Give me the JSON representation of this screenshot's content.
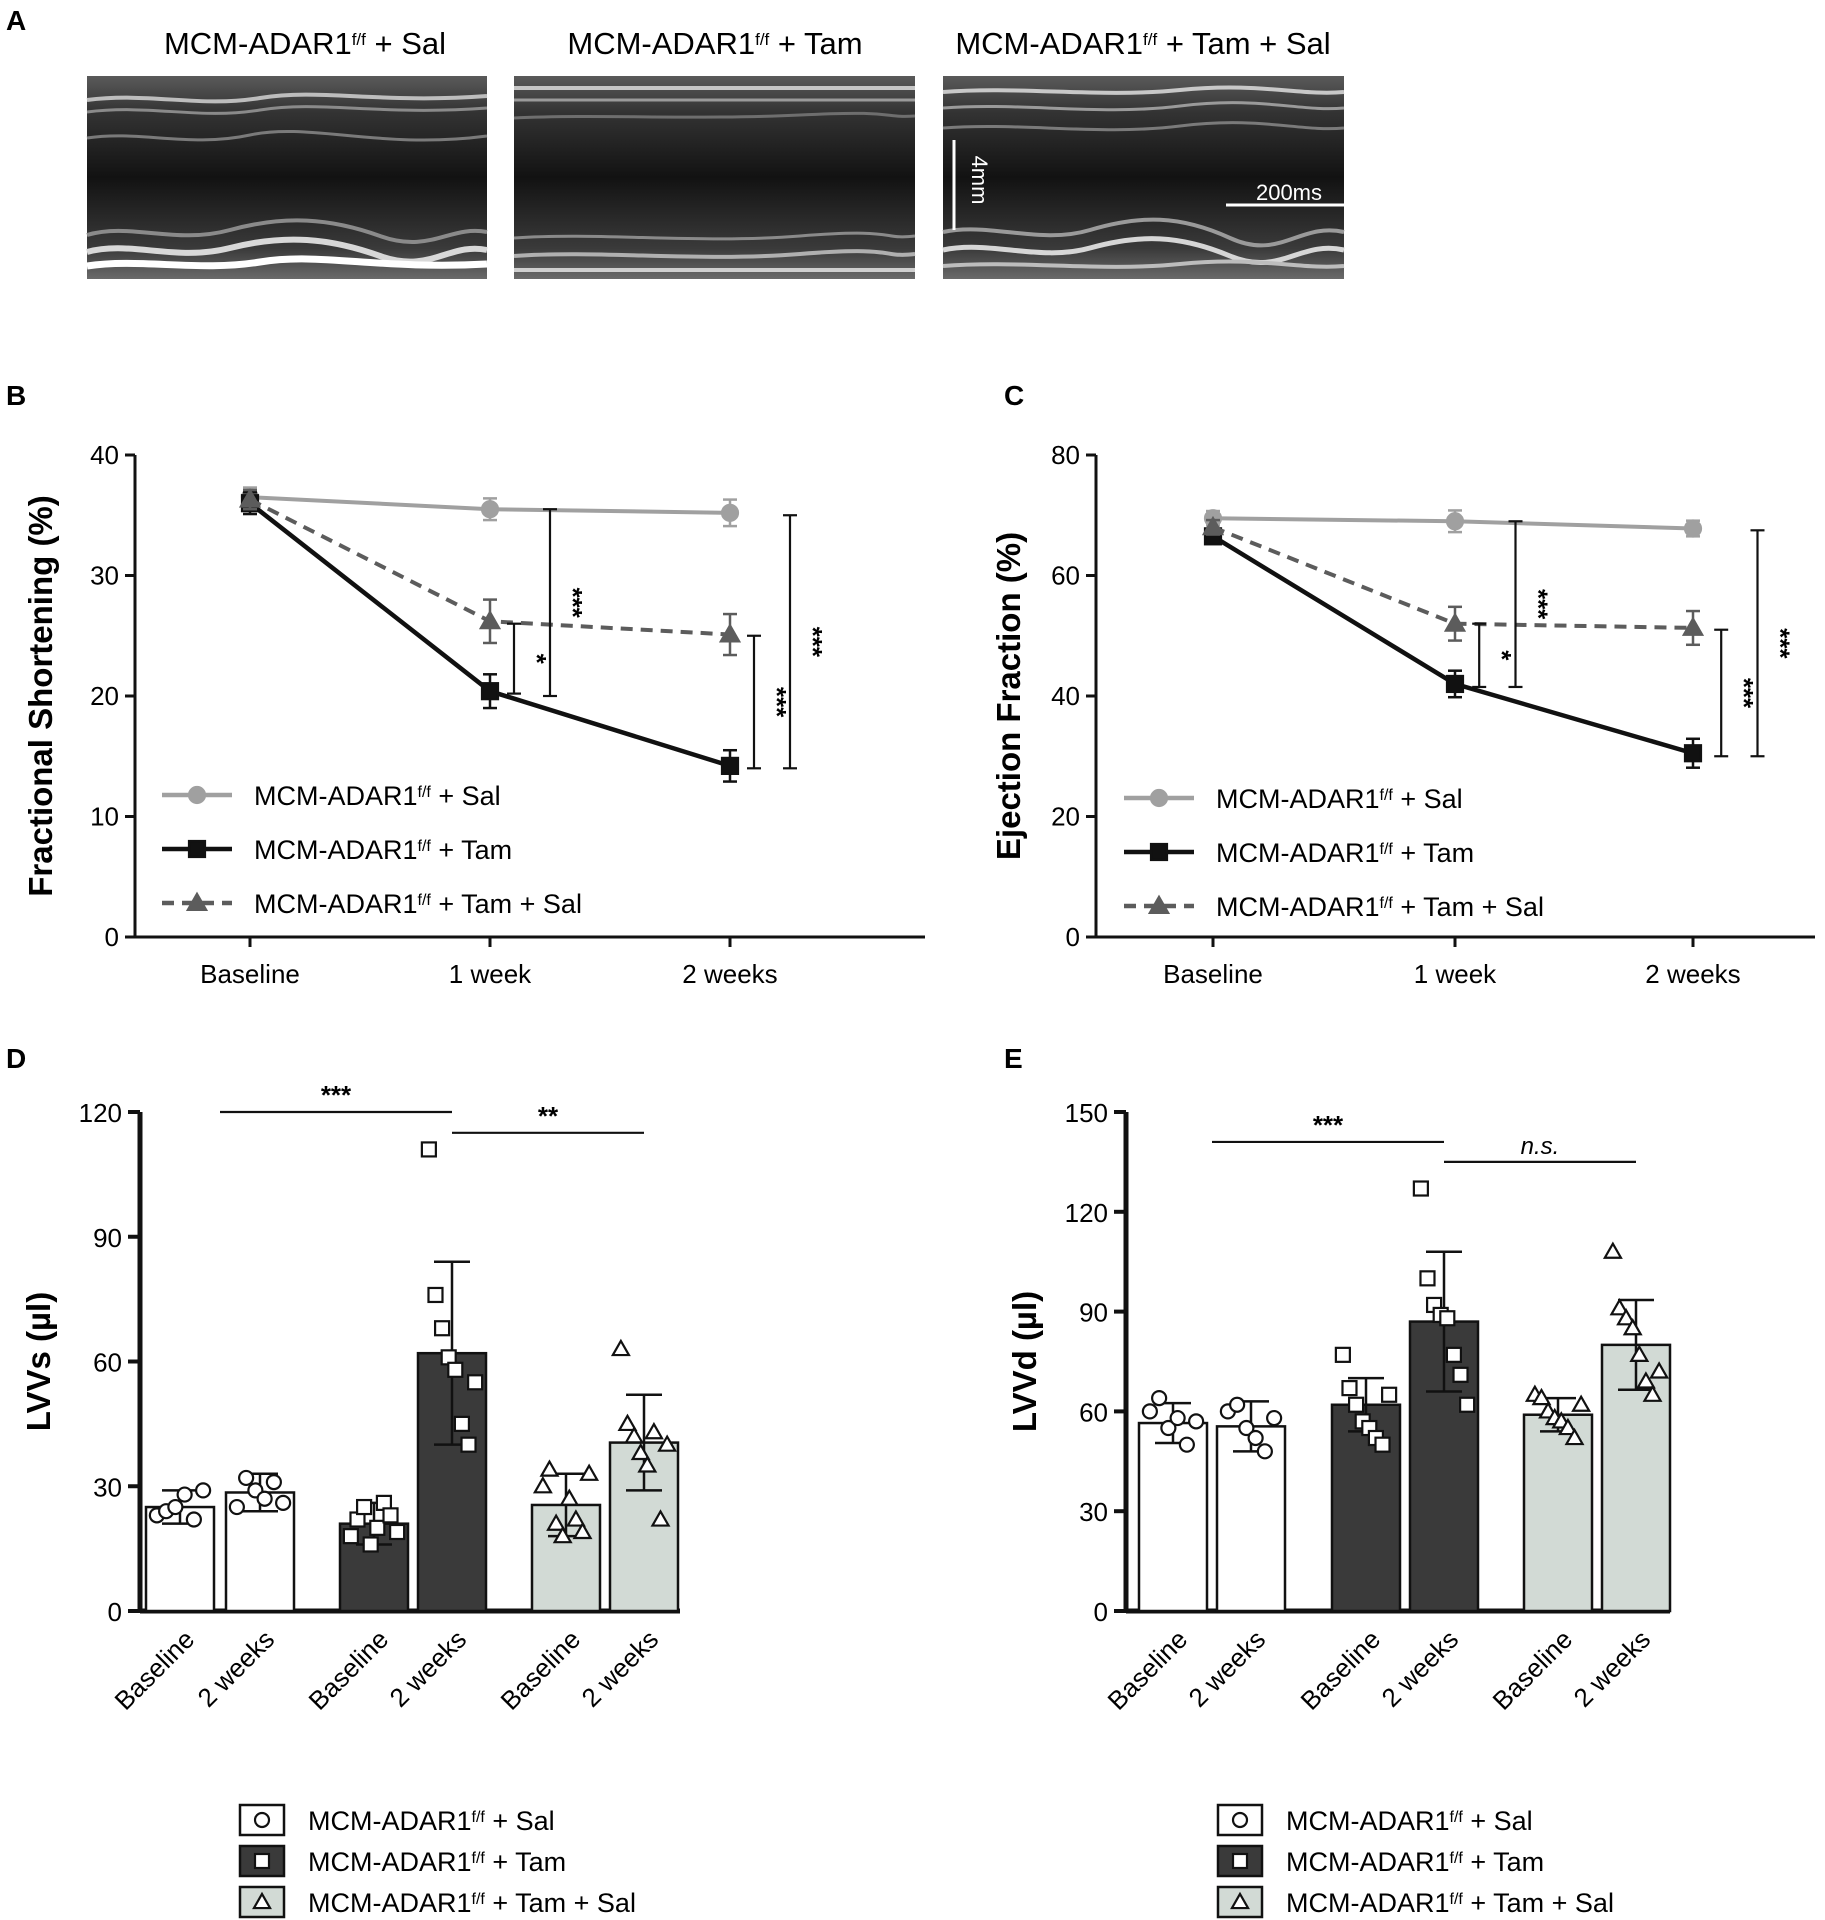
{
  "colors": {
    "sal": "#a0a0a0",
    "tam": "#111111",
    "tamsal": "#5c5c5c",
    "bar_sal_fill": "#ffffff",
    "bar_tam_fill": "#3a3a3a",
    "bar_tamsal_fill": "#d2dad5",
    "axis": "#111111"
  },
  "panel_a": {
    "letter": "A",
    "images": [
      {
        "title_main": "MCM-ADAR1",
        "title_sup": "f/f",
        "title_rest": " + Sal"
      },
      {
        "title_main": "MCM-ADAR1",
        "title_sup": "f/f",
        "title_rest": " + Tam"
      },
      {
        "title_main": "MCM-ADAR1",
        "title_sup": "f/f",
        "title_rest": " + Tam + Sal"
      }
    ],
    "scale_vertical": "4mm",
    "scale_horizontal": "200ms"
  },
  "chart_data": [
    {
      "id": "B",
      "letter": "B",
      "type": "line",
      "ylabel": "Fractional Shortening (%)",
      "categories": [
        "Baseline",
        "1 week",
        "2 weeks"
      ],
      "ylim": [
        0,
        40
      ],
      "yticks": [
        0,
        10,
        20,
        30,
        40
      ],
      "series": [
        {
          "name": "MCM-ADAR1 f/f + Sal",
          "key": "sal",
          "marker": "circle",
          "dash": false,
          "values": [
            36.5,
            35.5,
            35.2
          ],
          "err": [
            0.8,
            0.9,
            1.1
          ]
        },
        {
          "name": "MCM-ADAR1 f/f + Tam",
          "key": "tam",
          "marker": "square",
          "dash": false,
          "values": [
            36.0,
            20.4,
            14.2
          ],
          "err": [
            0.9,
            1.4,
            1.3
          ]
        },
        {
          "name": "MCM-ADAR1 f/f + Tam + Sal",
          "key": "tamsal",
          "marker": "triangle",
          "dash": true,
          "values": [
            36.3,
            26.2,
            25.1
          ],
          "err": [
            0.8,
            1.8,
            1.7
          ]
        }
      ],
      "legend": [
        {
          "main": "MCM-ADAR1",
          "sup": "f/f",
          "rest": " + Sal",
          "key": "sal"
        },
        {
          "main": "MCM-ADAR1",
          "sup": "f/f",
          "rest": " + Tam",
          "key": "tam"
        },
        {
          "main": "MCM-ADAR1",
          "sup": "f/f",
          "rest": " + Tam + Sal",
          "key": "tamsal"
        }
      ],
      "significance": [
        {
          "label": "*",
          "x": 1.1,
          "y_low": 20.2,
          "y_high": 26.0
        },
        {
          "label": "***",
          "x": 1.25,
          "y_low": 20.0,
          "y_high": 35.5
        },
        {
          "label": "***",
          "x": 2.1,
          "y_low": 14.0,
          "y_high": 25.0
        },
        {
          "label": "***",
          "x": 2.25,
          "y_low": 14.0,
          "y_high": 35.0
        }
      ]
    },
    {
      "id": "C",
      "letter": "C",
      "type": "line",
      "ylabel": "Ejection Fraction (%)",
      "categories": [
        "Baseline",
        "1 week",
        "2 weeks"
      ],
      "ylim": [
        0,
        80
      ],
      "yticks": [
        0,
        20,
        40,
        60,
        80
      ],
      "series": [
        {
          "name": "MCM-ADAR1 f/f + Sal",
          "key": "sal",
          "marker": "circle",
          "dash": false,
          "values": [
            69.5,
            69.0,
            67.8
          ],
          "err": [
            1.2,
            1.8,
            1.3
          ]
        },
        {
          "name": "MCM-ADAR1 f/f + Tam",
          "key": "tam",
          "marker": "square",
          "dash": false,
          "values": [
            66.5,
            42.0,
            30.5
          ],
          "err": [
            1.2,
            2.2,
            2.4
          ]
        },
        {
          "name": "MCM-ADAR1 f/f + Tam + Sal",
          "key": "tamsal",
          "marker": "triangle",
          "dash": true,
          "values": [
            68.0,
            52.0,
            51.3
          ],
          "err": [
            1.2,
            2.8,
            2.8
          ]
        }
      ],
      "legend": [
        {
          "main": "MCM-ADAR1",
          "sup": "f/f",
          "rest": " + Sal",
          "key": "sal"
        },
        {
          "main": "MCM-ADAR1",
          "sup": "f/f",
          "rest": " + Tam",
          "key": "tam"
        },
        {
          "main": "MCM-ADAR1",
          "sup": "f/f",
          "rest": " + Tam + Sal",
          "key": "tamsal"
        }
      ],
      "significance": [
        {
          "label": "*",
          "x": 1.1,
          "y_low": 41.5,
          "y_high": 52.0
        },
        {
          "label": "***",
          "x": 1.25,
          "y_low": 41.5,
          "y_high": 69.0
        },
        {
          "label": "***",
          "x": 2.1,
          "y_low": 30.0,
          "y_high": 51.0
        },
        {
          "label": "***",
          "x": 2.25,
          "y_low": 30.0,
          "y_high": 67.5
        }
      ]
    },
    {
      "id": "D",
      "letter": "D",
      "type": "bar",
      "ylabel": "LVVs (µl)",
      "categories": [
        "Baseline",
        "2 weeks",
        "Baseline",
        "2 weeks",
        "Baseline",
        "2 weeks"
      ],
      "ylim": [
        0,
        120
      ],
      "yticks": [
        0,
        30,
        60,
        90,
        120
      ],
      "bars": [
        {
          "group": "sal",
          "value": 25,
          "err": 4,
          "points": [
            23,
            24,
            25,
            28,
            22,
            29
          ]
        },
        {
          "group": "sal",
          "value": 28.5,
          "err": 4.5,
          "points": [
            25,
            32,
            29,
            27,
            31,
            26
          ]
        },
        {
          "group": "tam",
          "value": 21,
          "err": 5,
          "points": [
            18,
            22,
            25,
            16,
            20,
            26,
            23,
            19
          ]
        },
        {
          "group": "tam",
          "value": 62,
          "err": 22,
          "points": [
            111,
            76,
            68,
            61,
            58,
            45,
            40,
            55
          ]
        },
        {
          "group": "tamsal",
          "value": 25.5,
          "err": 7.5,
          "points": [
            30,
            34,
            21,
            18,
            27,
            22,
            19,
            33
          ]
        },
        {
          "group": "tamsal",
          "value": 40.5,
          "err": 11.5,
          "points": [
            63,
            45,
            42,
            38,
            35,
            43,
            22,
            40
          ]
        }
      ],
      "significance": [
        {
          "label": "***",
          "from": 0.5,
          "to": 3.0,
          "y": 120
        },
        {
          "label": "**",
          "from": 3.0,
          "to": 5.0,
          "y": 115
        }
      ],
      "legend": [
        {
          "main": "MCM-ADAR1",
          "sup": "f/f",
          "rest": " + Sal",
          "key": "sal",
          "symbol": "○"
        },
        {
          "main": "MCM-ADAR1",
          "sup": "f/f",
          "rest": " + Tam",
          "key": "tam",
          "symbol": "□"
        },
        {
          "main": "MCM-ADAR1",
          "sup": "f/f",
          "rest": " + Tam + Sal",
          "key": "tamsal",
          "symbol": "△"
        }
      ]
    },
    {
      "id": "E",
      "letter": "E",
      "type": "bar",
      "ylabel": "LVVd (µl)",
      "categories": [
        "Baseline",
        "2 weeks",
        "Baseline",
        "2 weeks",
        "Baseline",
        "2 weeks"
      ],
      "ylim": [
        0,
        150
      ],
      "yticks": [
        0,
        30,
        60,
        90,
        120,
        150
      ],
      "bars": [
        {
          "group": "sal",
          "value": 56.5,
          "err": 6,
          "points": [
            60,
            64,
            55,
            58,
            50,
            57
          ]
        },
        {
          "group": "sal",
          "value": 55.5,
          "err": 7.5,
          "points": [
            60,
            62,
            55,
            52,
            48,
            58
          ]
        },
        {
          "group": "tam",
          "value": 62,
          "err": 8,
          "points": [
            77,
            67,
            62,
            57,
            55,
            52,
            50,
            65
          ]
        },
        {
          "group": "tam",
          "value": 87,
          "err": 21,
          "points": [
            127,
            100,
            92,
            89,
            88,
            77,
            71,
            62
          ]
        },
        {
          "group": "tamsal",
          "value": 59,
          "err": 5,
          "points": [
            65,
            64,
            60,
            58,
            57,
            55,
            52,
            62
          ]
        },
        {
          "group": "tamsal",
          "value": 80,
          "err": 13.5,
          "points": [
            108,
            91,
            88,
            85,
            77,
            69,
            65,
            72
          ]
        }
      ],
      "significance": [
        {
          "label": "***",
          "from": 0.5,
          "to": 3.0,
          "y": 141
        },
        {
          "label": "n.s.",
          "from": 3.0,
          "to": 5.0,
          "y": 135
        }
      ],
      "legend": [
        {
          "main": "MCM-ADAR1",
          "sup": "f/f",
          "rest": " + Sal",
          "key": "sal",
          "symbol": "○"
        },
        {
          "main": "MCM-ADAR1",
          "sup": "f/f",
          "rest": " + Tam",
          "key": "tam",
          "symbol": "□"
        },
        {
          "main": "MCM-ADAR1",
          "sup": "f/f",
          "rest": " + Tam + Sal",
          "key": "tamsal",
          "symbol": "△"
        }
      ]
    }
  ]
}
